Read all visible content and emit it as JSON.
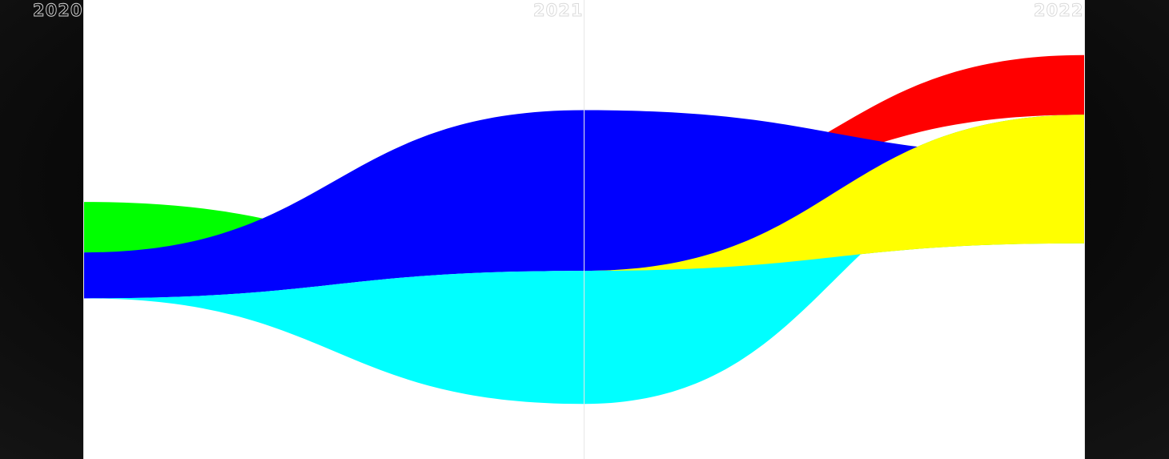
{
  "chart_data": {
    "type": "area",
    "title": "",
    "xlabel": "",
    "ylabel": "",
    "x": [
      "2020",
      "2021",
      "2022"
    ],
    "ylim": [
      0,
      1
    ],
    "grid": false,
    "legend": "none",
    "series": [
      {
        "color": "#ff0000",
        "top": [
          0.3,
          0.56,
          0.88
        ],
        "bottom": [
          0.3,
          0.56,
          0.75
        ]
      },
      {
        "color": "#00ff00",
        "top": [
          0.56,
          0.41,
          0.75
        ],
        "bottom": [
          0.45,
          0.41,
          0.47
        ]
      },
      {
        "color": "#0000ff",
        "top": [
          0.45,
          0.76,
          0.66
        ],
        "bottom": [
          0.35,
          0.41,
          0.66
        ]
      },
      {
        "color": "#00ffff",
        "top": [
          0.35,
          0.41,
          0.66
        ],
        "bottom": [
          0.35,
          0.12,
          0.66
        ]
      },
      {
        "color": "#ffff00",
        "top": [
          0.35,
          0.41,
          0.75
        ],
        "bottom": [
          0.35,
          0.41,
          0.47
        ]
      }
    ],
    "background": "#ffffff",
    "divider_color": "#e8e8e8",
    "label_color": "#d8d8d8"
  }
}
